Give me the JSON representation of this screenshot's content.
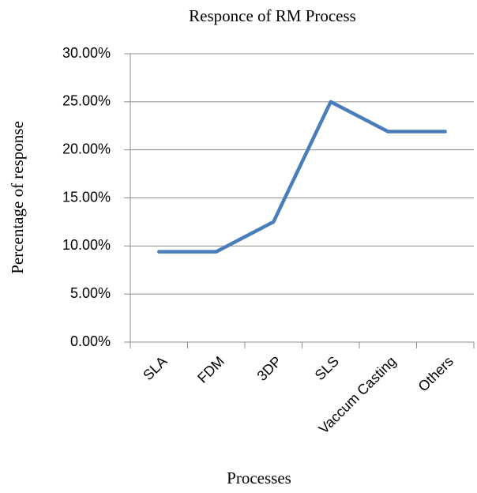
{
  "chart_data": {
    "type": "line",
    "title": "Responce of RM Process",
    "x_label": "Processes",
    "y_label": "Percentage of response",
    "categories": [
      "SLA",
      "FDM",
      "3DP",
      "SLS",
      "Vaccum Casting",
      "Others"
    ],
    "series": [
      {
        "name": "Percentage of response",
        "color": "#4a7ebb",
        "values": [
          9.4,
          9.4,
          12.5,
          25,
          21.9,
          21.9
        ]
      }
    ],
    "ylim": [
      0,
      30
    ],
    "yticks": [
      {
        "value": 0,
        "label": "0.00%"
      },
      {
        "value": 5,
        "label": "5.00%"
      },
      {
        "value": 10,
        "label": "10.00%"
      },
      {
        "value": 15,
        "label": "15.00%"
      },
      {
        "value": 20,
        "label": "20.00%"
      },
      {
        "value": 25,
        "label": "25.00%"
      },
      {
        "value": 30,
        "label": "30.00%"
      }
    ],
    "grid": true
  }
}
